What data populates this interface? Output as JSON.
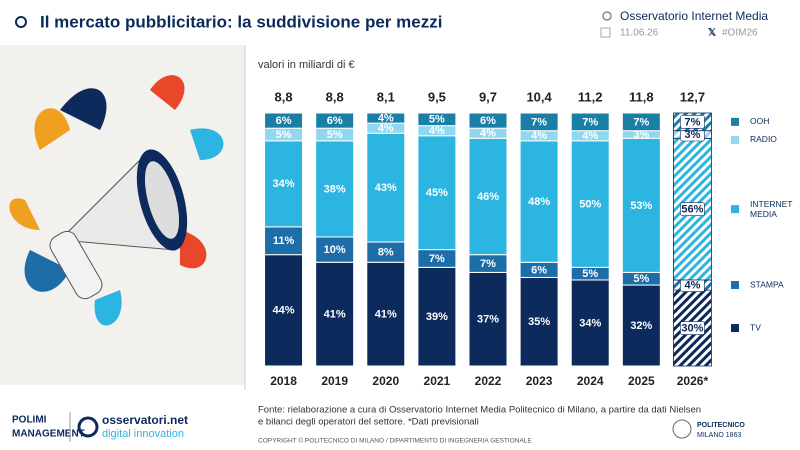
{
  "header": {
    "title": "Il mercato pubblicitario: la suddivisione per mezzi",
    "brand": "Osservatorio Internet Media",
    "date": "11.06.26",
    "hashtag": "#OIM26"
  },
  "chart_data": {
    "type": "stacked_bar",
    "subtitle": "valori in miliardi di €",
    "categories": [
      "2018",
      "2019",
      "2020",
      "2021",
      "2022",
      "2023",
      "2024",
      "2025",
      "2026*"
    ],
    "hatched_categories": [
      "2026*"
    ],
    "ylim": [
      0,
      100
    ],
    "totals": {
      "values": [
        8.8,
        8.8,
        8.1,
        9.5,
        9.7,
        10.4,
        11.2,
        11.8,
        12.7
      ],
      "value_labels": [
        "8,8",
        "8,8",
        "8,1",
        "9,5",
        "9,7",
        "10,4",
        "11,2",
        "11,8",
        "12,7"
      ]
    },
    "series": [
      {
        "name": "TV",
        "color": "#0c2a5b",
        "values": [
          44,
          41,
          41,
          39,
          37,
          35,
          34,
          32,
          30
        ],
        "value_labels": [
          "44%",
          "41%",
          "41%",
          "39%",
          "37%",
          "35%",
          "34%",
          "32%",
          "30%"
        ]
      },
      {
        "name": "STAMPA",
        "color": "#1d6ea8",
        "values": [
          11,
          10,
          8,
          7,
          7,
          6,
          5,
          5,
          4
        ],
        "value_labels": [
          "11%",
          "10%",
          "8%",
          "7%",
          "7%",
          "6%",
          "5%",
          "5%",
          "4%"
        ]
      },
      {
        "name": "INTERNET MEDIA",
        "color": "#2cb5e0",
        "values": [
          34,
          38,
          43,
          45,
          46,
          48,
          50,
          53,
          56
        ],
        "value_labels": [
          "34%",
          "38%",
          "43%",
          "45%",
          "46%",
          "48%",
          "50%",
          "53%",
          "56%"
        ]
      },
      {
        "name": "RADIO",
        "color": "#8fd8ef",
        "values": [
          5,
          5,
          4,
          4,
          4,
          4,
          4,
          3,
          3
        ],
        "value_labels": [
          "5%",
          "5%",
          "4%",
          "4%",
          "4%",
          "4%",
          "4%",
          "3%",
          "3%"
        ]
      },
      {
        "name": "OOH",
        "color": "#1a7fa6",
        "values": [
          6,
          6,
          4,
          5,
          6,
          7,
          7,
          7,
          7
        ],
        "value_labels": [
          "6%",
          "6%",
          "4%",
          "5%",
          "6%",
          "7%",
          "7%",
          "7%",
          "7%"
        ]
      }
    ],
    "source": [
      "Fonte: rielaborazione a cura di Osservatorio Internet Media Politecnico di Milano, a partire da dati Nielsen",
      "e bilanci degli operatori del settore. *Dati previsionali"
    ]
  },
  "footer": {
    "copyright": "COPYRIGHT © POLITECNICO DI MILANO / DIPARTIMENTO DI INGEGNERIA GESTIONALE",
    "logo_school": "POLIMI",
    "logo_school_sub": "MANAGEMENT",
    "logo_osservatori": "osservatori.net",
    "logo_osservatori_sub": "digital innovation",
    "logo_poli": "POLITECNICO",
    "logo_poli_sub": "MILANO 1863"
  }
}
